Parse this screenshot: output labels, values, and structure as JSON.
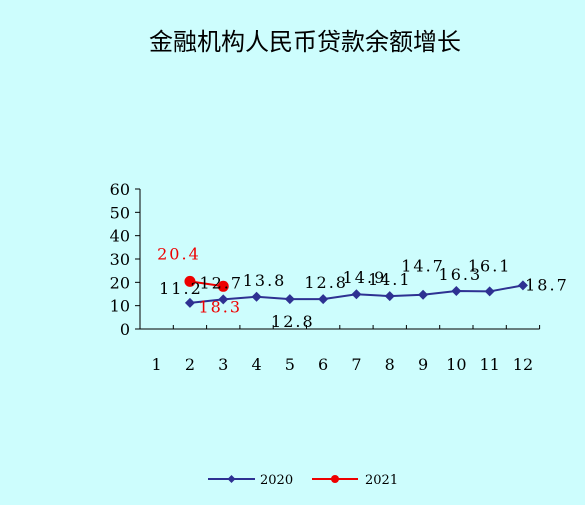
{
  "chart_data": {
    "type": "line",
    "title": "金融机构人民币贷款余额增长",
    "xlabel": "",
    "ylabel": "",
    "ylim": [
      0,
      60
    ],
    "yticks": [
      "0",
      "10",
      "20",
      "30",
      "40",
      "50",
      "60"
    ],
    "categories": [
      "1",
      "2",
      "3",
      "4",
      "5",
      "6",
      "7",
      "8",
      "9",
      "10",
      "11",
      "12"
    ],
    "grid": false,
    "legend": "bottom-center",
    "series": [
      {
        "name": "2020",
        "color": "#2e3192",
        "marker": "diamond",
        "x": [
          2,
          3,
          4,
          5,
          6,
          7,
          8,
          9,
          10,
          11,
          12
        ],
        "values": [
          11.2,
          12.7,
          13.8,
          12.8,
          12.8,
          14.9,
          14.1,
          14.7,
          16.3,
          16.1,
          18.7
        ],
        "labels": [
          "11.2",
          "12.7",
          "13.8",
          "12.8",
          "12.8",
          "14.9",
          "14.1",
          "14.7",
          "16.3",
          "16.1",
          "18.7"
        ]
      },
      {
        "name": "2021",
        "color": "#ee0000",
        "marker": "circle",
        "x": [
          2,
          3
        ],
        "values": [
          20.4,
          18.3
        ],
        "labels": [
          "20.4",
          "18.3"
        ]
      }
    ]
  }
}
